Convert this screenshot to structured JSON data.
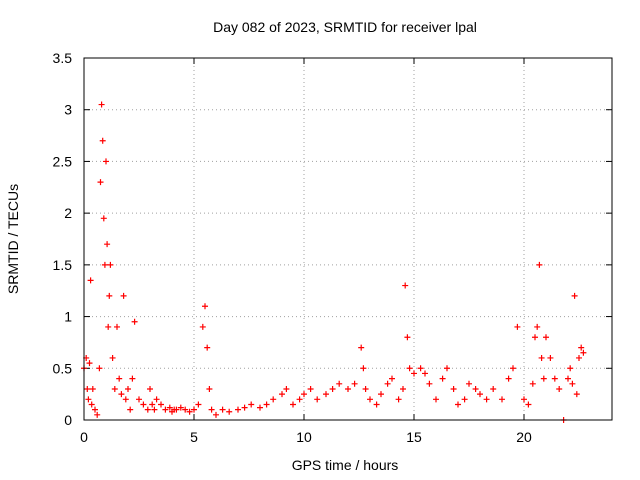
{
  "chart_data": {
    "type": "scatter",
    "title": "Day 082 of 2023, SRMTID for receiver lpal",
    "xlabel": "GPS time / hours",
    "ylabel": "SRMTID / TECUs",
    "xlim": [
      0,
      24
    ],
    "ylim": [
      0,
      3.5
    ],
    "xticks": [
      0,
      5,
      10,
      15,
      20
    ],
    "yticks": [
      0,
      0.5,
      1,
      1.5,
      2,
      2.5,
      3,
      3.5
    ],
    "xtick_labels": [
      "0",
      "5",
      "10",
      "15",
      "20"
    ],
    "ytick_labels": [
      "0",
      "0.5",
      "1",
      "1.5",
      "2",
      "2.5",
      "3",
      "3.5"
    ],
    "grid": true,
    "marker": "+",
    "color": "#ff0000",
    "series": [
      {
        "name": "SRMTID",
        "x": [
          0.0,
          0.1,
          0.15,
          0.2,
          0.25,
          0.3,
          0.35,
          0.4,
          0.5,
          0.6,
          0.7,
          0.75,
          0.8,
          0.85,
          0.9,
          0.95,
          1.0,
          1.05,
          1.1,
          1.15,
          1.2,
          1.3,
          1.4,
          1.5,
          1.6,
          1.7,
          1.8,
          1.9,
          2.0,
          2.1,
          2.2,
          2.3,
          2.5,
          2.7,
          2.9,
          3.0,
          3.1,
          3.2,
          3.3,
          3.5,
          3.7,
          3.9,
          4.0,
          4.1,
          4.2,
          4.4,
          4.6,
          4.8,
          5.0,
          5.2,
          5.4,
          5.5,
          5.6,
          5.7,
          5.8,
          6.0,
          6.3,
          6.6,
          7.0,
          7.3,
          7.6,
          8.0,
          8.3,
          8.6,
          9.0,
          9.2,
          9.5,
          9.8,
          10.0,
          10.3,
          10.6,
          11.0,
          11.3,
          11.6,
          12.0,
          12.3,
          12.6,
          12.7,
          12.8,
          13.0,
          13.3,
          13.5,
          13.8,
          14.0,
          14.3,
          14.5,
          14.6,
          14.7,
          14.8,
          15.0,
          15.3,
          15.5,
          15.7,
          16.0,
          16.3,
          16.5,
          16.8,
          17.0,
          17.3,
          17.5,
          17.8,
          18.0,
          18.3,
          18.6,
          19.0,
          19.3,
          19.5,
          19.7,
          20.0,
          20.2,
          20.4,
          20.5,
          20.6,
          20.7,
          20.8,
          20.9,
          21.0,
          21.2,
          21.4,
          21.6,
          21.8,
          22.0,
          22.1,
          22.2,
          22.3,
          22.4,
          22.5,
          22.6,
          22.7
        ],
        "y": [
          0.5,
          0.6,
          0.3,
          0.2,
          0.55,
          1.35,
          0.15,
          0.3,
          0.1,
          0.05,
          0.5,
          2.3,
          3.05,
          2.7,
          1.95,
          1.5,
          2.5,
          1.7,
          0.9,
          1.2,
          1.5,
          0.6,
          0.3,
          0.9,
          0.4,
          0.25,
          1.2,
          0.2,
          0.3,
          0.1,
          0.4,
          0.95,
          0.2,
          0.15,
          0.1,
          0.3,
          0.15,
          0.1,
          0.2,
          0.15,
          0.1,
          0.12,
          0.08,
          0.1,
          0.1,
          0.12,
          0.1,
          0.08,
          0.1,
          0.15,
          0.9,
          1.1,
          0.7,
          0.3,
          0.1,
          0.05,
          0.1,
          0.08,
          0.1,
          0.12,
          0.15,
          0.12,
          0.15,
          0.2,
          0.25,
          0.3,
          0.15,
          0.2,
          0.25,
          0.3,
          0.2,
          0.25,
          0.3,
          0.35,
          0.3,
          0.35,
          0.7,
          0.5,
          0.3,
          0.2,
          0.15,
          0.25,
          0.35,
          0.4,
          0.2,
          0.3,
          1.3,
          0.8,
          0.5,
          0.45,
          0.5,
          0.45,
          0.35,
          0.2,
          0.4,
          0.5,
          0.3,
          0.15,
          0.2,
          0.35,
          0.3,
          0.25,
          0.2,
          0.3,
          0.2,
          0.4,
          0.5,
          0.9,
          0.2,
          0.15,
          0.35,
          0.8,
          0.9,
          1.5,
          0.6,
          0.4,
          0.8,
          0.6,
          0.4,
          0.3,
          0.0,
          0.4,
          0.5,
          0.35,
          1.2,
          0.25,
          0.6,
          0.7,
          0.65
        ]
      }
    ]
  }
}
